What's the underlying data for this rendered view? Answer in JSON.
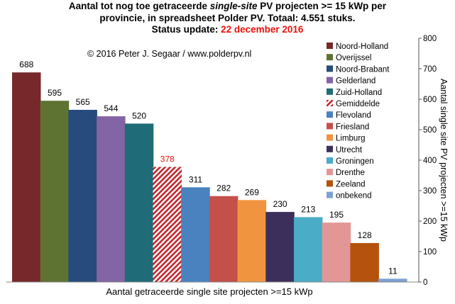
{
  "title": {
    "line1_pre": "Aantal tot nog toe getraceerde ",
    "line1_italic": "single-site",
    "line1_post": " PV projecten >= 15 kWp per",
    "line2": "provincie, in spreadsheet Polder PV. Totaal: 4.551 stuks.",
    "line3_pre": "Status update: ",
    "line3_date": "22 december 2016"
  },
  "copyright": "© 2016 Peter J. Segaar / www.polderpv.nl",
  "chart_data": {
    "type": "bar",
    "categories": [
      "Noord-Holland",
      "Overijssel",
      "Noord-Brabant",
      "Gelderland",
      "Zuid-Holland",
      "Gemiddelde",
      "Flevoland",
      "Friesland",
      "Limburg",
      "Utrecht",
      "Groningen",
      "Drenthe",
      "Zeeland",
      "onbekend"
    ],
    "values": [
      688,
      595,
      565,
      544,
      520,
      378,
      311,
      282,
      269,
      230,
      213,
      195,
      128,
      11
    ],
    "colors": [
      "#76282a",
      "#5e7232",
      "#264b7c",
      "#8364a4",
      "#1f6b78",
      "#c0272d",
      "#4a82c0",
      "#c4504b",
      "#f19440",
      "#3d2f5b",
      "#4aacc6",
      "#e39696",
      "#b5520d",
      "#7ea0d4"
    ],
    "hatched": [
      "Gemiddelde"
    ],
    "highlight_label_color": "#e8120b",
    "xlabel": "Aantal getraceerde single site projecten >=15 kWp",
    "ylabel": "Aantal single site PV projecten >=15 kWp",
    "ylim": [
      0,
      800
    ],
    "yticks": [
      0,
      100,
      200,
      300,
      400,
      500,
      600,
      700,
      800
    ],
    "y_axis_side": "right",
    "grid": false,
    "legend_placement": "right"
  }
}
